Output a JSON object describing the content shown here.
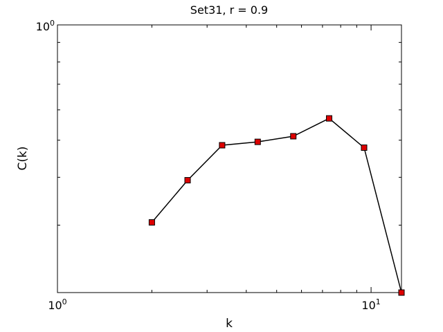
{
  "chart_data": {
    "type": "line",
    "title": "Set31, r = 0.9",
    "xlabel": "k",
    "ylabel": "C(k)",
    "xscale": "log",
    "yscale": "log",
    "xlim": [
      1,
      12.5
    ],
    "ylim": [
      0.2,
      1.0
    ],
    "grid": false,
    "x_tick_labels": [
      {
        "value": 1,
        "base": "10",
        "exp": "0"
      },
      {
        "value": 10,
        "base": "10",
        "exp": "1"
      }
    ],
    "y_tick_labels": [
      {
        "value": 1,
        "base": "10",
        "exp": "0"
      }
    ],
    "series": [
      {
        "x": [
          2.0,
          2.6,
          3.35,
          4.35,
          5.65,
          7.35,
          9.5,
          12.5
        ],
        "y": [
          0.305,
          0.393,
          0.485,
          0.495,
          0.512,
          0.57,
          0.478,
          0.2
        ],
        "color": "#000000",
        "marker": "square",
        "marker_fill": "#dd0000"
      }
    ]
  }
}
